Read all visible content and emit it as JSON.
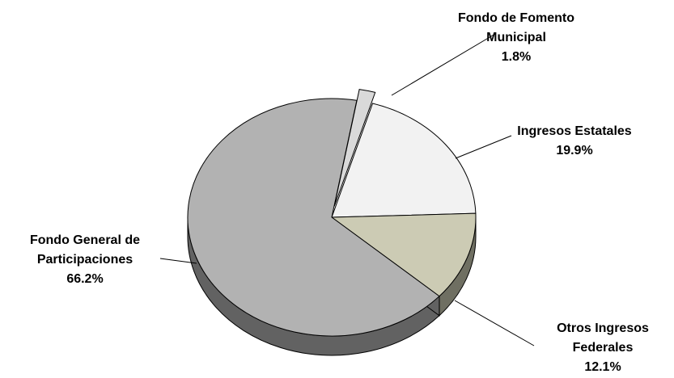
{
  "chart_data": {
    "type": "pie",
    "style": "3d",
    "title": "",
    "slices": [
      {
        "name_lines": [
          "Fondo de Fomento",
          "Municipal"
        ],
        "value": 1.8,
        "label": "1.8%",
        "color": "#d9d9d9",
        "side_color": "#8c8c8c",
        "exploded": true
      },
      {
        "name_lines": [
          "Ingresos Estatales"
        ],
        "value": 19.9,
        "label": "19.9%",
        "color": "#f2f2f2",
        "side_color": "#9a9a9a",
        "exploded": false
      },
      {
        "name_lines": [
          "Otros Ingresos",
          "Federales"
        ],
        "value": 12.1,
        "label": "12.1%",
        "color": "#cccbb4",
        "side_color": "#6f6f62",
        "exploded": false
      },
      {
        "name_lines": [
          "Fondo General de",
          "Participaciones"
        ],
        "value": 66.2,
        "label": "66.2%",
        "color": "#b2b2b2",
        "side_color": "#626262",
        "exploded": false
      }
    ]
  }
}
